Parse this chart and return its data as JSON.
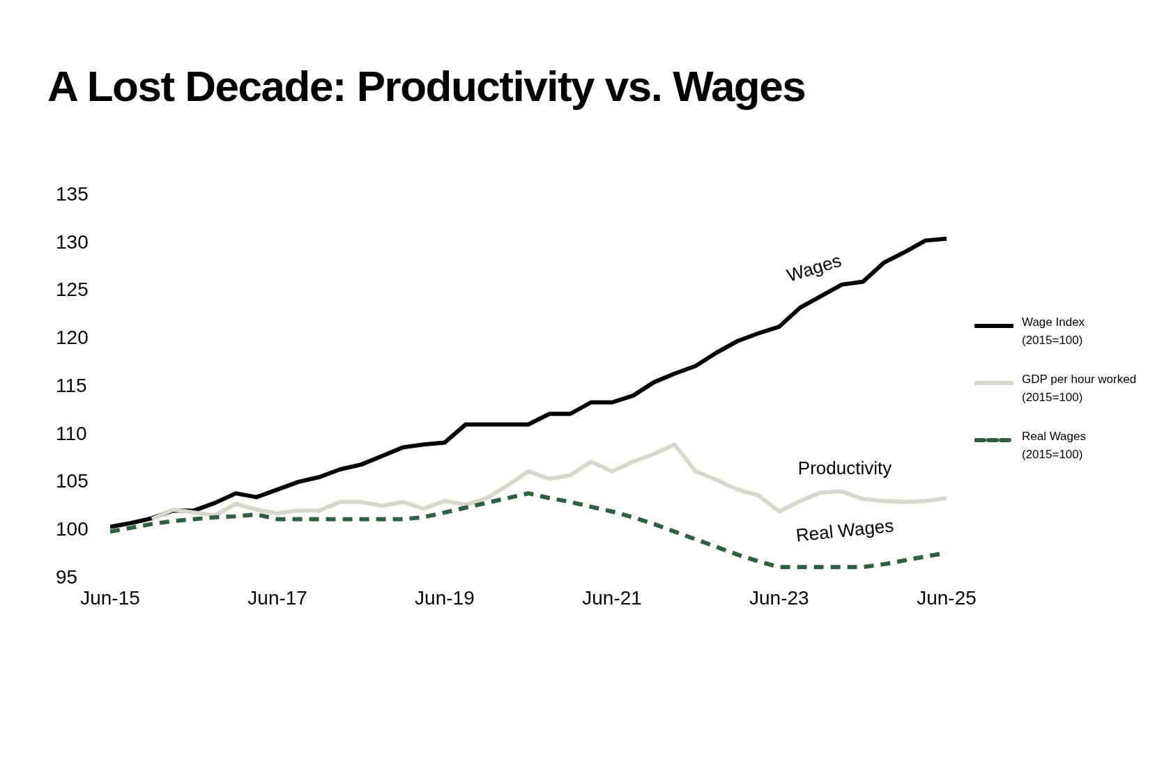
{
  "chart_data": {
    "type": "line",
    "title": "A Lost Decade: Productivity vs. Wages",
    "x": [
      "2015-06",
      "2015-09",
      "2015-12",
      "2016-03",
      "2016-06",
      "2016-09",
      "2016-12",
      "2017-03",
      "2017-06",
      "2017-09",
      "2017-12",
      "2018-03",
      "2018-06",
      "2018-09",
      "2018-12",
      "2019-03",
      "2019-06",
      "2019-09",
      "2019-12",
      "2020-03",
      "2020-06",
      "2020-09",
      "2020-12",
      "2021-03",
      "2021-06",
      "2021-09",
      "2021-12",
      "2022-03",
      "2022-06",
      "2022-09",
      "2022-12",
      "2023-03",
      "2023-06",
      "2023-09",
      "2023-12",
      "2024-03",
      "2024-06",
      "2024-09",
      "2024-12",
      "2025-03",
      "2025-06"
    ],
    "series": [
      {
        "name": "Wage Index (2015=100)",
        "color": "#000000",
        "line_style": "solid",
        "values": [
          100.2,
          100.6,
          101.1,
          101.9,
          101.9,
          102.7,
          103.7,
          103.3,
          104.1,
          104.9,
          105.4,
          106.2,
          106.7,
          107.6,
          108.5,
          108.8,
          109.0,
          110.9,
          110.9,
          110.9,
          110.9,
          112.0,
          112.0,
          113.2,
          113.2,
          113.9,
          115.3,
          116.2,
          117.0,
          118.4,
          119.6,
          120.4,
          121.1,
          123.1,
          124.3,
          125.5,
          125.8,
          127.8,
          128.9,
          130.1,
          130.3
        ]
      },
      {
        "name": "GDP per hour worked (2015=100)",
        "color": "#d9d6ce",
        "line_style": "solid",
        "values": [
          null,
          null,
          101.0,
          102.0,
          101.7,
          101.4,
          102.6,
          102.0,
          101.6,
          101.9,
          101.9,
          102.8,
          102.8,
          102.4,
          102.8,
          102.1,
          102.9,
          102.5,
          103.2,
          104.5,
          106.0,
          105.2,
          105.6,
          107.0,
          106.0,
          107.0,
          107.8,
          108.8,
          106.0,
          105.1,
          104.1,
          103.5,
          101.8,
          102.9,
          103.8,
          103.9,
          103.1,
          102.9,
          102.8,
          102.9,
          103.2
        ]
      },
      {
        "name": "Real Wages (2015=100)",
        "color": "#2e6040",
        "line_style": "dashed",
        "values": [
          99.7,
          100.1,
          100.5,
          100.8,
          101.0,
          101.2,
          101.3,
          101.5,
          101.0,
          101.0,
          101.0,
          101.0,
          101.0,
          101.0,
          101.0,
          101.2,
          101.7,
          102.2,
          102.7,
          103.2,
          103.7,
          103.2,
          102.8,
          102.3,
          101.8,
          101.2,
          100.5,
          99.7,
          98.9,
          98.1,
          97.3,
          96.6,
          96.0,
          96.0,
          96.0,
          96.0,
          96.0,
          96.3,
          96.7,
          97.1,
          97.5
        ]
      }
    ],
    "xlim": [
      "2015-06",
      "2025-06"
    ],
    "xticks": [
      {
        "value": "2015-06",
        "label": "Jun-15"
      },
      {
        "value": "2017-06",
        "label": "Jun-17"
      },
      {
        "value": "2019-06",
        "label": "Jun-19"
      },
      {
        "value": "2021-06",
        "label": "Jun-21"
      },
      {
        "value": "2023-06",
        "label": "Jun-23"
      },
      {
        "value": "2025-06",
        "label": "Jun-25"
      }
    ],
    "ylim": [
      95,
      135
    ],
    "yticks": [
      95,
      100,
      105,
      110,
      115,
      120,
      125,
      130,
      135
    ],
    "grid": false,
    "legend": "right",
    "marker": "none",
    "annotations": [
      "Wages",
      "Productivity",
      "Real Wages"
    ]
  }
}
